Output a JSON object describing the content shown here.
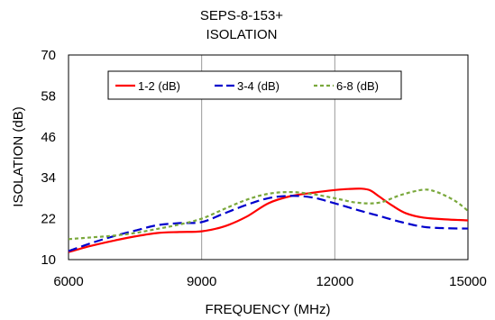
{
  "chart_data": {
    "type": "line",
    "title": [
      "SEPS-8-153+",
      "ISOLATION"
    ],
    "xlabel": "FREQUENCY (MHz)",
    "ylabel": "ISOLATION (dB)",
    "xlim": [
      6000,
      15000
    ],
    "ylim": [
      10,
      70
    ],
    "xticks": [
      6000,
      9000,
      12000,
      15000
    ],
    "yticks": [
      10,
      22,
      34,
      46,
      58,
      70
    ],
    "grid": "vertical",
    "legend_position": "top",
    "series": [
      {
        "name": "1-2 (dB)",
        "color": "#ff0000",
        "dash": "solid",
        "x": [
          6000,
          6500,
          7000,
          7500,
          8000,
          8500,
          9000,
          9500,
          10000,
          10500,
          11000,
          11500,
          12000,
          12300,
          12600,
          12800,
          13000,
          13300,
          13600,
          14000,
          14500,
          15000
        ],
        "y": [
          12.2,
          14.0,
          15.5,
          16.8,
          17.8,
          18.1,
          18.3,
          19.7,
          22.5,
          26.5,
          28.6,
          29.6,
          30.4,
          30.7,
          30.8,
          30.3,
          28.5,
          25.8,
          23.6,
          22.3,
          21.8,
          21.5
        ]
      },
      {
        "name": "3-4 (dB)",
        "color": "#0000cc",
        "dash": "long",
        "x": [
          6000,
          6500,
          7000,
          7500,
          8000,
          8500,
          9000,
          9500,
          10000,
          10500,
          11000,
          11500,
          12000,
          12500,
          13000,
          13500,
          14000,
          14500,
          15000
        ],
        "y": [
          12.5,
          14.8,
          16.8,
          18.5,
          20.1,
          20.7,
          21.0,
          23.5,
          26.0,
          28.0,
          28.7,
          28.2,
          26.5,
          24.6,
          22.8,
          21.0,
          19.6,
          19.2,
          19.1
        ]
      },
      {
        "name": "6-8 (dB)",
        "color": "#7aa83c",
        "dash": "short",
        "x": [
          6000,
          6500,
          7000,
          7500,
          8000,
          8500,
          9000,
          9500,
          10000,
          10500,
          11000,
          11500,
          12000,
          12500,
          13000,
          13500,
          14000,
          14300,
          14700,
          15000
        ],
        "y": [
          16.0,
          16.5,
          17.0,
          17.8,
          19.0,
          20.3,
          22.0,
          24.8,
          27.5,
          29.3,
          29.8,
          29.2,
          28.0,
          26.7,
          26.7,
          29.0,
          30.5,
          29.8,
          27.3,
          24.3
        ]
      }
    ]
  }
}
